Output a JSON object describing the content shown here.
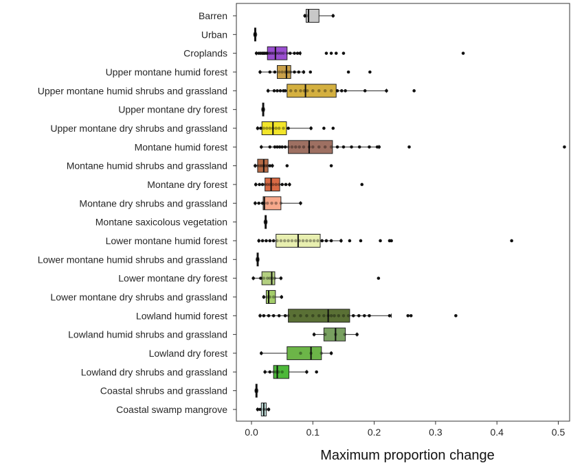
{
  "chart_data": {
    "type": "boxplot",
    "title": "",
    "xlabel": "Maximum proportion change",
    "ylabel": "",
    "xlim": [
      -0.025,
      0.52
    ],
    "xticks": [
      0.0,
      0.1,
      0.2,
      0.3,
      0.4,
      0.5
    ],
    "xtick_labels": [
      "0.0",
      "0.1",
      "0.2",
      "0.3",
      "0.4",
      "0.5"
    ],
    "grid": false,
    "orientation": "horizontal",
    "categories": [
      {
        "name": "Barren",
        "color": "#c8c8c8",
        "min": 0.087,
        "q1": 0.089,
        "median": 0.093,
        "q3": 0.11,
        "max": 0.133,
        "points": [
          0.087,
          0.09,
          0.133
        ]
      },
      {
        "name": "Urban",
        "color": "#8a8a8a",
        "min": 0.004,
        "q1": 0.005,
        "median": 0.006,
        "q3": 0.007,
        "max": 0.008,
        "points": [
          0.005,
          0.006,
          0.007
        ]
      },
      {
        "name": "Croplands",
        "color": "#9a4fd0",
        "min": 0.008,
        "q1": 0.026,
        "median": 0.039,
        "q3": 0.058,
        "max": 0.08,
        "points": [
          0.008,
          0.012,
          0.015,
          0.018,
          0.02,
          0.022,
          0.025,
          0.028,
          0.03,
          0.033,
          0.036,
          0.04,
          0.044,
          0.048,
          0.052,
          0.058,
          0.063,
          0.07,
          0.075,
          0.079,
          0.122,
          0.13,
          0.138,
          0.15,
          0.345
        ]
      },
      {
        "name": "Upper montane humid forest",
        "color": "#c9a04a",
        "min": 0.014,
        "q1": 0.042,
        "median": 0.057,
        "q3": 0.064,
        "max": 0.085,
        "points": [
          0.014,
          0.03,
          0.038,
          0.045,
          0.05,
          0.055,
          0.058,
          0.061,
          0.064,
          0.07,
          0.077,
          0.085,
          0.096,
          0.158,
          0.193
        ]
      },
      {
        "name": "Upper montane humid shrubs and grassland",
        "color": "#d4b040",
        "min": 0.027,
        "q1": 0.058,
        "median": 0.088,
        "q3": 0.138,
        "max": 0.22,
        "points": [
          0.027,
          0.037,
          0.042,
          0.047,
          0.052,
          0.055,
          0.064,
          0.072,
          0.08,
          0.086,
          0.091,
          0.1,
          0.11,
          0.12,
          0.13,
          0.14,
          0.147,
          0.153,
          0.185,
          0.22,
          0.265
        ]
      },
      {
        "name": "Upper montane dry forest",
        "color": "#666666",
        "min": 0.017,
        "q1": 0.018,
        "median": 0.019,
        "q3": 0.02,
        "max": 0.021,
        "points": [
          0.018,
          0.019,
          0.02
        ]
      },
      {
        "name": "Upper montane dry shrubs and grassland",
        "color": "#f2e52a",
        "min": 0.01,
        "q1": 0.017,
        "median": 0.035,
        "q3": 0.057,
        "max": 0.097,
        "points": [
          0.01,
          0.015,
          0.02,
          0.025,
          0.03,
          0.035,
          0.04,
          0.045,
          0.052,
          0.06,
          0.097,
          0.118,
          0.133
        ]
      },
      {
        "name": "Montane humid forest",
        "color": "#9e7062",
        "min": 0.016,
        "q1": 0.06,
        "median": 0.094,
        "q3": 0.132,
        "max": 0.208,
        "points": [
          0.016,
          0.03,
          0.038,
          0.042,
          0.046,
          0.05,
          0.055,
          0.06,
          0.066,
          0.072,
          0.078,
          0.085,
          0.094,
          0.1,
          0.11,
          0.12,
          0.13,
          0.14,
          0.15,
          0.163,
          0.176,
          0.192,
          0.205,
          0.208,
          0.257,
          0.51
        ]
      },
      {
        "name": "Montane humid shrubs and grassland",
        "color": "#b56a45",
        "min": 0.006,
        "q1": 0.01,
        "median": 0.02,
        "q3": 0.027,
        "max": 0.034,
        "points": [
          0.006,
          0.01,
          0.014,
          0.017,
          0.02,
          0.023,
          0.026,
          0.03,
          0.034,
          0.058,
          0.13
        ]
      },
      {
        "name": "Montane dry forest",
        "color": "#d86a45",
        "min": 0.007,
        "q1": 0.022,
        "median": 0.032,
        "q3": 0.046,
        "max": 0.062,
        "points": [
          0.007,
          0.013,
          0.018,
          0.022,
          0.026,
          0.03,
          0.035,
          0.04,
          0.045,
          0.05,
          0.056,
          0.062,
          0.18
        ]
      },
      {
        "name": "Montane dry shrubs and grassland",
        "color": "#f7a98c",
        "min": 0.006,
        "q1": 0.019,
        "median": 0.021,
        "q3": 0.048,
        "max": 0.08,
        "points": [
          0.006,
          0.012,
          0.018,
          0.021,
          0.026,
          0.033,
          0.04,
          0.048,
          0.08
        ]
      },
      {
        "name": "Montane saxicolous vegetation",
        "color": "#666666",
        "min": 0.021,
        "q1": 0.022,
        "median": 0.023,
        "q3": 0.024,
        "max": 0.025,
        "points": [
          0.022,
          0.023,
          0.024
        ]
      },
      {
        "name": "Lower montane humid forest",
        "color": "#e8efb0",
        "min": 0.012,
        "q1": 0.04,
        "median": 0.076,
        "q3": 0.112,
        "max": 0.146,
        "points": [
          0.012,
          0.018,
          0.024,
          0.03,
          0.036,
          0.042,
          0.048,
          0.054,
          0.06,
          0.066,
          0.072,
          0.078,
          0.084,
          0.09,
          0.096,
          0.102,
          0.108,
          0.115,
          0.122,
          0.13,
          0.146,
          0.16,
          0.178,
          0.21,
          0.225,
          0.228,
          0.424
        ]
      },
      {
        "name": "Lower montane humid shrubs and grassland",
        "color": "#666666",
        "min": 0.008,
        "q1": 0.009,
        "median": 0.01,
        "q3": 0.011,
        "max": 0.012,
        "points": [
          0.009,
          0.01,
          0.011
        ]
      },
      {
        "name": "Lower montane dry forest",
        "color": "#b3cf80",
        "min": 0.003,
        "q1": 0.017,
        "median": 0.033,
        "q3": 0.038,
        "max": 0.048,
        "points": [
          0.003,
          0.015,
          0.02,
          0.026,
          0.03,
          0.034,
          0.038,
          0.048,
          0.207
        ]
      },
      {
        "name": "Lower montane dry shrubs and grassland",
        "color": "#a3cc6a",
        "min": 0.02,
        "q1": 0.024,
        "median": 0.028,
        "q3": 0.039,
        "max": 0.049,
        "points": [
          0.02,
          0.026,
          0.03,
          0.036,
          0.049
        ]
      },
      {
        "name": "Lowland humid forest",
        "color": "#5a7035",
        "min": 0.014,
        "q1": 0.06,
        "median": 0.125,
        "q3": 0.16,
        "max": 0.228,
        "points": [
          0.014,
          0.02,
          0.028,
          0.036,
          0.045,
          0.055,
          0.06,
          0.07,
          0.08,
          0.09,
          0.1,
          0.11,
          0.118,
          0.125,
          0.13,
          0.135,
          0.142,
          0.15,
          0.158,
          0.166,
          0.175,
          0.184,
          0.192,
          0.225,
          0.255,
          0.26,
          0.333
        ]
      },
      {
        "name": "Lowland humid shrubs and grassland",
        "color": "#78a060",
        "min": 0.102,
        "q1": 0.118,
        "median": 0.137,
        "q3": 0.153,
        "max": 0.172,
        "points": [
          0.102,
          0.12,
          0.137,
          0.152,
          0.172
        ]
      },
      {
        "name": "Lowland dry forest",
        "color": "#6cb548",
        "min": 0.016,
        "q1": 0.058,
        "median": 0.097,
        "q3": 0.114,
        "max": 0.13,
        "points": [
          0.016,
          0.08,
          0.097,
          0.114,
          0.13
        ]
      },
      {
        "name": "Lowland dry shrubs and grassland",
        "color": "#4db83a",
        "min": 0.022,
        "q1": 0.036,
        "median": 0.042,
        "q3": 0.061,
        "max": 0.09,
        "points": [
          0.022,
          0.03,
          0.036,
          0.04,
          0.044,
          0.05,
          0.09,
          0.106
        ]
      },
      {
        "name": "Coastal shrubs and grassland",
        "color": "#666666",
        "min": 0.006,
        "q1": 0.007,
        "median": 0.008,
        "q3": 0.009,
        "max": 0.01,
        "points": [
          0.007,
          0.008,
          0.009
        ]
      },
      {
        "name": "Coastal swamp mangrove",
        "color": "#c6e6e2",
        "min": 0.01,
        "q1": 0.016,
        "median": 0.02,
        "q3": 0.024,
        "max": 0.028,
        "points": [
          0.01,
          0.014,
          0.02,
          0.024,
          0.028
        ]
      }
    ]
  }
}
